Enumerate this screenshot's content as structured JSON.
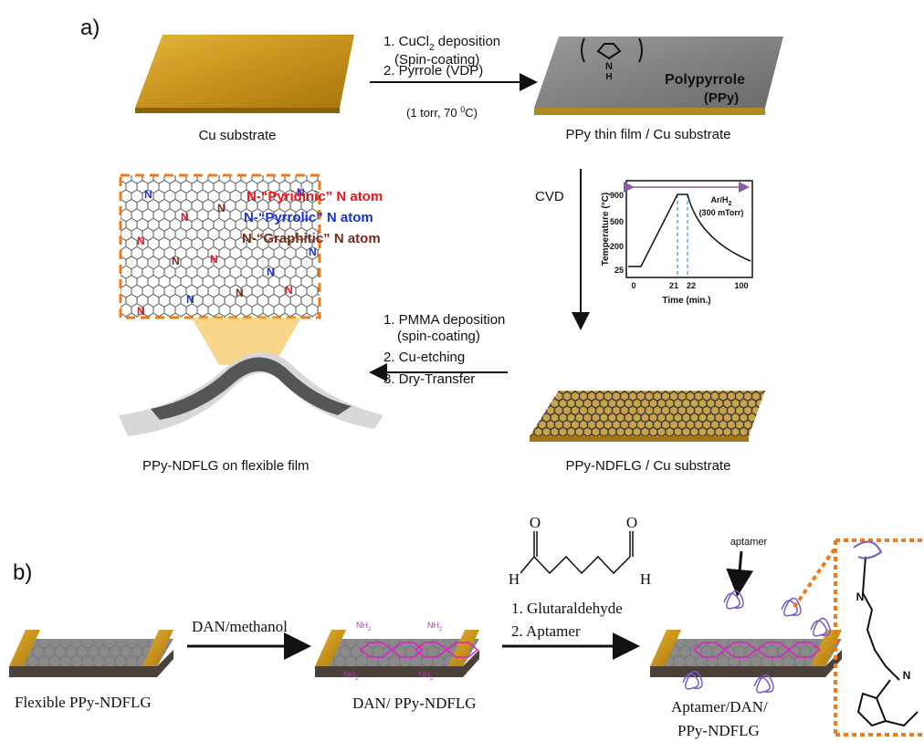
{
  "panel_a": {
    "label": "a)",
    "substrate_label": "Cu substrate",
    "step1": {
      "line1": {
        "pre": "1. CuCl",
        "sub": "2",
        "post": " deposition"
      },
      "line2": "(Spin-coating)",
      "line3": "2. Pyrrole (VDP)",
      "line4": {
        "pre": "(1 torr, 70 ",
        "sup": "0",
        "post": "C)"
      }
    },
    "ppy": {
      "name": "Polypyrrole",
      "abbr": "(PPy)",
      "n": "N",
      "h": "H"
    },
    "film_label": "PPy thin film / Cu substrate",
    "cvd": "CVD",
    "inset": {
      "y_label": "Temperature (°C)",
      "x_label": "Time (min.)",
      "yticks": [
        "900",
        "500",
        "200",
        "25"
      ],
      "xticks": [
        "0",
        "21",
        "22",
        "100"
      ],
      "gas": {
        "pre": "Ar/H",
        "sub": "2"
      },
      "pressure": "(300 mTorr)"
    },
    "n_symbol": "N",
    "legend": [
      "N-“Pyridinic” N atom",
      "N-“Pyrrolic” N atom",
      "N-“Graphitic” N atom"
    ],
    "step2": [
      "1. PMMA deposition",
      "(spin-coating)",
      "2. Cu-etching",
      "3. Dry-Transfer"
    ],
    "flexible_label": "PPy-NDFLG on flexible film",
    "cu_label": "PPy-NDFLG / Cu substrate"
  },
  "panel_b": {
    "label": "b)",
    "device1_label": "Flexible PPy-NDFLG",
    "step1": "DAN/methanol",
    "device2_label": "DAN/ PPy-NDFLG",
    "nh2": {
      "pre": "NH",
      "sub": "2"
    },
    "glut": {
      "h": "H",
      "o": "O"
    },
    "step2": [
      "1. Glutaraldehyde",
      "2. Aptamer"
    ],
    "aptamer": "aptamer",
    "device3_label": [
      "Aptamer/DAN/",
      "PPy-NDFLG"
    ],
    "structure_n": "N"
  }
}
